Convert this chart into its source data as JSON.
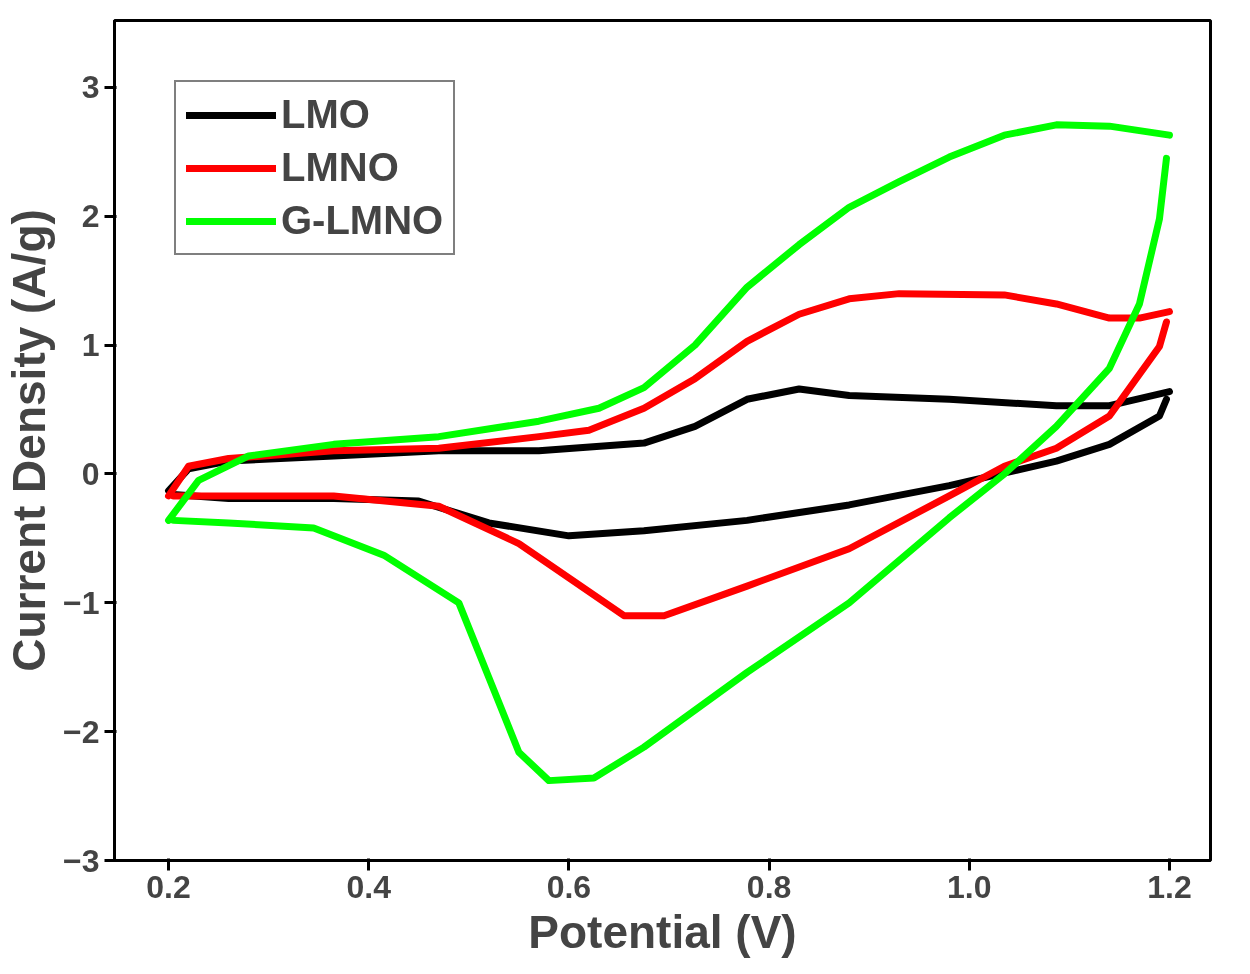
{
  "chart_data": {
    "type": "line",
    "xlabel": "Potential (V)",
    "ylabel": "Current Density (A/g)",
    "xlim": [
      0.146,
      1.241
    ],
    "ylim": [
      -3,
      3.52
    ],
    "xticks": [
      {
        "value": 0.2,
        "label": "0.2"
      },
      {
        "value": 0.4,
        "label": "0.4"
      },
      {
        "value": 0.6,
        "label": "0.6"
      },
      {
        "value": 0.8,
        "label": "0.8"
      },
      {
        "value": 1.0,
        "label": "1.0"
      },
      {
        "value": 1.2,
        "label": "1.2"
      }
    ],
    "yticks": [
      -3,
      -2,
      -1,
      0,
      1,
      2,
      3
    ],
    "grid": false,
    "legend": "top left",
    "marker": "none",
    "line_style": "solid",
    "series": [
      {
        "name": "LMO",
        "color": "#000000",
        "x": [
          0.2,
          0.22,
          0.26,
          0.365,
          0.47,
          0.57,
          0.675,
          0.726,
          0.778,
          0.83,
          0.88,
          0.98,
          1.087,
          1.14,
          1.2
        ],
        "values": [
          -0.13,
          0.04,
          0.1,
          0.14,
          0.18,
          0.18,
          0.24,
          0.37,
          0.58,
          0.66,
          0.61,
          0.58,
          0.53,
          0.53,
          0.64
        ]
      },
      {
        "color": "#000000",
        "x": [
          0.205,
          0.26,
          0.365,
          0.45,
          0.52,
          0.6,
          0.675,
          0.778,
          0.88,
          0.98,
          1.087,
          1.14,
          1.19,
          1.197
        ],
        "values": [
          -0.16,
          -0.19,
          -0.19,
          -0.21,
          -0.38,
          -0.48,
          -0.44,
          -0.36,
          -0.24,
          -0.09,
          0.1,
          0.23,
          0.45,
          0.58
        ]
      },
      {
        "name": "LMNO",
        "color": "#ff0000",
        "x": [
          0.2,
          0.22,
          0.26,
          0.365,
          0.47,
          0.57,
          0.62,
          0.675,
          0.726,
          0.778,
          0.83,
          0.88,
          0.93,
          1.035,
          1.087,
          1.14,
          1.17,
          1.2
        ],
        "values": [
          -0.17,
          0.06,
          0.12,
          0.18,
          0.2,
          0.29,
          0.34,
          0.51,
          0.74,
          1.03,
          1.24,
          1.36,
          1.4,
          1.39,
          1.32,
          1.21,
          1.21,
          1.26
        ]
      },
      {
        "color": "#ff0000",
        "x": [
          0.205,
          0.26,
          0.365,
          0.47,
          0.55,
          0.612,
          0.655,
          0.695,
          0.778,
          0.88,
          0.98,
          1.035,
          1.087,
          1.14,
          1.19,
          1.197
        ],
        "values": [
          -0.17,
          -0.17,
          -0.17,
          -0.25,
          -0.54,
          -0.87,
          -1.1,
          -1.1,
          -0.87,
          -0.58,
          -0.17,
          0.06,
          0.2,
          0.45,
          0.99,
          1.18
        ]
      },
      {
        "name": "G-LMNO",
        "color": "#00ff00",
        "x": [
          0.2,
          0.23,
          0.28,
          0.365,
          0.47,
          0.57,
          0.63,
          0.675,
          0.726,
          0.778,
          0.83,
          0.88,
          0.93,
          0.98,
          1.035,
          1.087,
          1.14,
          1.2
        ],
        "values": [
          -0.36,
          -0.05,
          0.14,
          0.23,
          0.29,
          0.41,
          0.51,
          0.67,
          1.0,
          1.45,
          1.78,
          2.07,
          2.27,
          2.46,
          2.63,
          2.71,
          2.7,
          2.63
        ]
      },
      {
        "color": "#00ff00",
        "x": [
          0.205,
          0.26,
          0.345,
          0.415,
          0.49,
          0.52,
          0.55,
          0.58,
          0.625,
          0.675,
          0.778,
          0.88,
          0.98,
          1.035,
          1.087,
          1.14,
          1.17,
          1.19,
          1.197
        ],
        "values": [
          -0.36,
          -0.38,
          -0.42,
          -0.63,
          -1.0,
          -1.58,
          -2.16,
          -2.38,
          -2.36,
          -2.12,
          -1.54,
          -1.0,
          -0.34,
          0.0,
          0.37,
          0.82,
          1.32,
          1.98,
          2.45
        ]
      }
    ]
  }
}
